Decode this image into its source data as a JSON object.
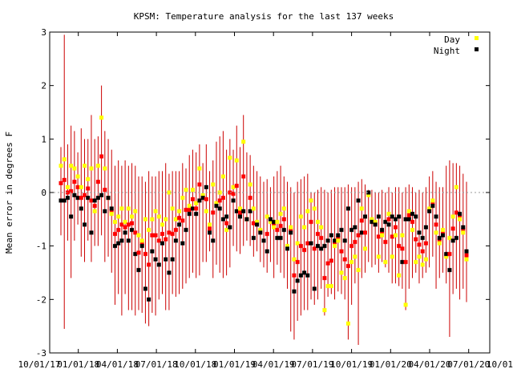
{
  "chart_data": {
    "type": "scatter",
    "title": "KPSM: Temperature analysis for the last 137 weeks",
    "ylabel": "Mean error in degrees F",
    "xlabel": "",
    "ylim": [
      -3,
      3
    ],
    "yticks": [
      -3,
      -2,
      -1,
      0,
      1,
      2,
      3
    ],
    "x_tick_labels": [
      "10/01/17",
      "01/01/18",
      "04/01/18",
      "07/01/18",
      "10/01/18",
      "01/01/19",
      "04/01/19",
      "07/01/19",
      "10/01/19",
      "01/01/20",
      "04/01/20",
      "07/01/20",
      "10/01/20"
    ],
    "x_tick_display": [
      "10/01/17",
      "01/01/18",
      "04/01/18",
      "07/01/18",
      "10/01/18",
      "01/01/19",
      "04/01/19",
      "07/01/19",
      "10/01/19",
      "01/01/20",
      "04/01/20",
      "07/01/20",
      "10/01/20"
    ],
    "zero_line": true,
    "legend": {
      "position": "top-right"
    },
    "colors": {
      "day": "#ffff00",
      "night": "#000000",
      "error_bar": "#cc0000",
      "mean": "#ff0000"
    },
    "series": [
      {
        "name": "Day"
      },
      {
        "name": "Night"
      }
    ],
    "points": [
      {
        "day": 0.5,
        "night": -0.15,
        "lo": -0.8,
        "hi": 0.85
      },
      {
        "day": 0.62,
        "night": -0.15,
        "lo": -2.55,
        "hi": 2.95
      },
      {
        "day": 0.1,
        "night": -0.1,
        "lo": -0.9,
        "hi": 0.9
      },
      {
        "day": 0.5,
        "night": -0.45,
        "lo": -1.6,
        "hi": 1.25
      },
      {
        "day": 0.45,
        "night": -0.05,
        "lo": -0.9,
        "hi": 1.15
      },
      {
        "day": 0.3,
        "night": -0.1,
        "lo": -0.6,
        "hi": 0.75
      },
      {
        "day": 0.1,
        "night": -0.3,
        "lo": -1.2,
        "hi": 1.2
      },
      {
        "day": 0.5,
        "night": -0.6,
        "lo": -1.3,
        "hi": 1.0
      },
      {
        "day": 0.25,
        "night": -0.1,
        "lo": -0.9,
        "hi": 1.0
      },
      {
        "day": 0.45,
        "night": -0.75,
        "lo": -1.3,
        "hi": 1.45
      },
      {
        "day": -0.35,
        "night": -0.15,
        "lo": -1.0,
        "hi": 1.0
      },
      {
        "day": 0.5,
        "night": -0.1,
        "lo": -1.0,
        "hi": 1.05
      },
      {
        "day": 1.4,
        "night": -0.05,
        "lo": -0.8,
        "hi": 2.0
      },
      {
        "day": 0.45,
        "night": -0.35,
        "lo": -1.3,
        "hi": 1.15
      },
      {
        "day": -0.1,
        "night": -0.1,
        "lo": -1.2,
        "hi": 1.0
      },
      {
        "day": -0.4,
        "night": -0.3,
        "lo": -1.5,
        "hi": 0.8
      },
      {
        "day": -0.55,
        "night": -1.0,
        "lo": -2.1,
        "hi": 0.5
      },
      {
        "day": -0.45,
        "night": -0.95,
        "lo": -1.9,
        "hi": 0.6
      },
      {
        "day": -0.3,
        "night": -0.9,
        "lo": -2.3,
        "hi": 0.5
      },
      {
        "day": -0.55,
        "night": -0.75,
        "lo": -1.9,
        "hi": 0.6
      },
      {
        "day": -0.3,
        "night": -0.9,
        "lo": -2.2,
        "hi": 0.5
      },
      {
        "day": -0.45,
        "night": -0.7,
        "lo": -2.2,
        "hi": 0.55
      },
      {
        "day": -0.35,
        "night": -1.15,
        "lo": -2.3,
        "hi": 0.5
      },
      {
        "day": -0.8,
        "night": -1.45,
        "lo": -2.2,
        "hi": 0.3
      },
      {
        "day": -0.9,
        "night": -1.0,
        "lo": -2.25,
        "hi": 0.3
      },
      {
        "day": -0.5,
        "night": -1.8,
        "lo": -2.45,
        "hi": 0.2
      },
      {
        "day": -0.7,
        "night": -2.0,
        "lo": -2.5,
        "hi": 0.4
      },
      {
        "day": -0.5,
        "night": -1.1,
        "lo": -2.25,
        "hi": 0.3
      },
      {
        "day": -0.35,
        "night": -1.25,
        "lo": -2.3,
        "hi": 0.3
      },
      {
        "day": -0.45,
        "night": -1.35,
        "lo": -2.0,
        "hi": 0.4
      },
      {
        "day": -0.6,
        "night": -0.95,
        "lo": -1.9,
        "hi": 0.4
      },
      {
        "day": -0.5,
        "night": -1.25,
        "lo": -2.2,
        "hi": 0.55
      },
      {
        "day": 0.0,
        "night": -1.5,
        "lo": -2.2,
        "hi": 0.35
      },
      {
        "day": -0.3,
        "night": -1.25,
        "lo": -1.9,
        "hi": 0.4
      },
      {
        "day": -0.5,
        "night": -0.9,
        "lo": -1.95,
        "hi": 0.4
      },
      {
        "day": -0.35,
        "night": -0.6,
        "lo": -1.9,
        "hi": 0.4
      },
      {
        "day": -0.1,
        "night": -0.95,
        "lo": -1.8,
        "hi": 0.55
      },
      {
        "day": 0.05,
        "night": -0.7,
        "lo": -1.7,
        "hi": 0.45
      },
      {
        "day": -0.25,
        "night": -0.4,
        "lo": -1.6,
        "hi": 0.7
      },
      {
        "day": 0.05,
        "night": -0.3,
        "lo": -1.5,
        "hi": 0.8
      },
      {
        "day": -0.2,
        "night": -0.4,
        "lo": -1.6,
        "hi": 0.75
      },
      {
        "day": 0.45,
        "night": -0.15,
        "lo": -1.55,
        "hi": 0.9
      },
      {
        "day": -0.05,
        "night": -0.1,
        "lo": -1.3,
        "hi": 0.55
      },
      {
        "day": -0.35,
        "night": 0.1,
        "lo": -1.3,
        "hi": 0.9
      },
      {
        "day": -0.6,
        "night": -0.75,
        "lo": -1.1,
        "hi": 0.4
      },
      {
        "day": 0.15,
        "night": -0.9,
        "lo": -1.6,
        "hi": 0.6
      },
      {
        "day": -0.2,
        "night": -0.25,
        "lo": -1.35,
        "hi": 0.95
      },
      {
        "day": 0.0,
        "night": -0.3,
        "lo": -1.5,
        "hi": 1.05
      },
      {
        "day": 0.3,
        "night": -0.5,
        "lo": -1.6,
        "hi": 1.15
      },
      {
        "day": -0.7,
        "night": -0.45,
        "lo": -1.55,
        "hi": 0.8
      },
      {
        "day": 0.65,
        "night": -0.65,
        "lo": -1.4,
        "hi": 1.0
      },
      {
        "day": 0.1,
        "night": -0.15,
        "lo": -1.0,
        "hi": 0.8
      },
      {
        "day": 0.6,
        "night": -0.35,
        "lo": -1.1,
        "hi": 1.25
      },
      {
        "day": -0.3,
        "night": -0.45,
        "lo": -1.15,
        "hi": 0.85
      },
      {
        "day": 0.95,
        "night": -0.35,
        "lo": -1.0,
        "hi": 1.45
      },
      {
        "day": -0.5,
        "night": -0.5,
        "lo": -0.9,
        "hi": 0.75
      },
      {
        "day": 0.15,
        "night": -0.35,
        "lo": -1.0,
        "hi": 0.7
      },
      {
        "day": -0.3,
        "night": -0.85,
        "lo": -1.2,
        "hi": 0.5
      },
      {
        "day": -0.55,
        "night": -0.6,
        "lo": -1.1,
        "hi": 0.4
      },
      {
        "day": -0.7,
        "night": -0.75,
        "lo": -1.3,
        "hi": 0.3
      },
      {
        "day": -0.9,
        "night": -0.9,
        "lo": -1.4,
        "hi": 0.2
      },
      {
        "day": -0.45,
        "night": -1.1,
        "lo": -1.5,
        "hi": 0.25
      },
      {
        "day": -0.55,
        "night": -0.5,
        "lo": -1.3,
        "hi": 0.1
      },
      {
        "day": -0.65,
        "night": -0.55,
        "lo": -1.6,
        "hi": 0.3
      },
      {
        "day": -0.55,
        "night": -0.85,
        "lo": -1.35,
        "hi": 0.4
      },
      {
        "day": -0.4,
        "night": -0.85,
        "lo": -1.5,
        "hi": 0.5
      },
      {
        "day": -0.3,
        "night": -0.7,
        "lo": -1.6,
        "hi": 0.3
      },
      {
        "day": -1.0,
        "night": -1.05,
        "lo": -1.8,
        "hi": 0.2
      },
      {
        "day": -0.65,
        "night": -0.75,
        "lo": -2.6,
        "hi": 0.1
      },
      {
        "day": -1.25,
        "night": -1.85,
        "lo": -2.75,
        "hi": 0.0
      },
      {
        "day": -0.95,
        "night": -1.65,
        "lo": -2.4,
        "hi": 0.2
      },
      {
        "day": -0.45,
        "night": -1.55,
        "lo": -2.3,
        "hi": 0.25
      },
      {
        "day": -0.65,
        "night": -1.5,
        "lo": -2.2,
        "hi": 0.3
      },
      {
        "day": -0.35,
        "night": -1.55,
        "lo": -2.2,
        "hi": 0.35
      },
      {
        "day": -0.15,
        "night": -0.95,
        "lo": -2.0,
        "hi": 0.0
      },
      {
        "day": -0.3,
        "night": -1.8,
        "lo": -2.1,
        "hi": 0.0
      },
      {
        "day": -0.55,
        "night": -1.0,
        "lo": -2.0,
        "hi": 0.05
      },
      {
        "day": -0.65,
        "night": -1.05,
        "lo": -1.8,
        "hi": 0.1
      },
      {
        "day": -2.2,
        "night": -1.0,
        "lo": -2.3,
        "hi": 0.05
      },
      {
        "day": -1.75,
        "night": -0.9,
        "lo": -1.95,
        "hi": 0.0
      },
      {
        "day": -1.75,
        "night": -0.8,
        "lo": -1.9,
        "hi": 0.05
      },
      {
        "day": -1.0,
        "night": -0.9,
        "lo": -2.0,
        "hi": 0.1
      },
      {
        "day": -0.9,
        "night": -0.8,
        "lo": -1.85,
        "hi": 0.1
      },
      {
        "day": -1.5,
        "night": -0.7,
        "lo": -1.9,
        "hi": 0.1
      },
      {
        "day": -1.6,
        "night": -0.9,
        "lo": -2.0,
        "hi": 0.1
      },
      {
        "day": -2.45,
        "night": -0.3,
        "lo": -2.75,
        "hi": 0.15
      },
      {
        "day": -1.3,
        "night": -0.7,
        "lo": -2.1,
        "hi": 0.1
      },
      {
        "day": -1.2,
        "night": -0.65,
        "lo": -1.7,
        "hi": 0.1
      },
      {
        "day": -1.45,
        "night": -0.15,
        "lo": -2.85,
        "hi": 0.2
      },
      {
        "day": -0.3,
        "night": -0.75,
        "lo": -1.6,
        "hi": 0.25
      },
      {
        "day": -1.05,
        "night": -0.45,
        "lo": -1.5,
        "hi": 0.15
      },
      {
        "day": -0.05,
        "night": 0.0,
        "lo": -1.3,
        "hi": 0.05
      },
      {
        "day": -0.5,
        "night": -0.55,
        "lo": -1.4,
        "hi": 0.05
      },
      {
        "day": -0.55,
        "night": -0.6,
        "lo": -1.35,
        "hi": 0.0
      },
      {
        "day": -1.2,
        "night": -0.45,
        "lo": -1.5,
        "hi": 0.0
      },
      {
        "day": -0.8,
        "night": -0.7,
        "lo": -1.3,
        "hi": 0.05
      },
      {
        "day": -1.3,
        "night": -0.55,
        "lo": -1.4,
        "hi": 0.0
      },
      {
        "day": -0.4,
        "night": -0.6,
        "lo": -1.5,
        "hi": 0.1
      },
      {
        "day": -1.2,
        "night": -0.45,
        "lo": -1.7,
        "hi": 0.0
      },
      {
        "day": -0.8,
        "night": -0.5,
        "lo": -1.7,
        "hi": 0.1
      },
      {
        "day": -1.55,
        "night": -0.45,
        "lo": -1.75,
        "hi": 0.1
      },
      {
        "day": -0.8,
        "night": -1.3,
        "lo": -1.8,
        "hi": 0.0
      },
      {
        "day": -2.1,
        "night": -0.5,
        "lo": -2.2,
        "hi": 0.1
      },
      {
        "day": -0.35,
        "night": -0.5,
        "lo": -1.8,
        "hi": 0.15
      },
      {
        "day": -0.7,
        "night": -0.4,
        "lo": -1.6,
        "hi": 0.1
      },
      {
        "day": -1.3,
        "night": -0.45,
        "lo": -1.5,
        "hi": 0.0
      },
      {
        "day": -1.2,
        "night": -0.75,
        "lo": -1.7,
        "hi": 0.05
      },
      {
        "day": -1.35,
        "night": -0.85,
        "lo": -1.6,
        "hi": 0.0
      },
      {
        "day": -1.25,
        "night": -0.65,
        "lo": -1.5,
        "hi": 0.1
      },
      {
        "day": -0.3,
        "night": -0.35,
        "lo": -1.4,
        "hi": 0.3
      },
      {
        "day": -0.15,
        "night": -0.25,
        "lo": -1.2,
        "hi": 0.4
      },
      {
        "day": -0.75,
        "night": -0.45,
        "lo": -1.8,
        "hi": 0.2
      },
      {
        "day": -0.95,
        "night": -0.85,
        "lo": -1.6,
        "hi": 0.1
      },
      {
        "day": -0.7,
        "night": -0.8,
        "lo": -1.5,
        "hi": 0.1
      },
      {
        "day": -1.2,
        "night": -1.15,
        "lo": -1.7,
        "hi": 0.5
      },
      {
        "day": -0.85,
        "night": -1.45,
        "lo": -2.7,
        "hi": 0.6
      },
      {
        "day": -0.45,
        "night": -0.9,
        "lo": -1.9,
        "hi": 0.55
      },
      {
        "day": 0.1,
        "night": -0.85,
        "lo": -1.8,
        "hi": 0.55
      },
      {
        "day": -0.5,
        "night": -0.4,
        "lo": -2.0,
        "hi": 0.5
      },
      {
        "day": -0.75,
        "night": -0.65,
        "lo": -1.8,
        "hi": 0.35
      },
      {
        "day": -1.25,
        "night": -1.1,
        "lo": -2.05,
        "hi": 0.2
      }
    ]
  }
}
